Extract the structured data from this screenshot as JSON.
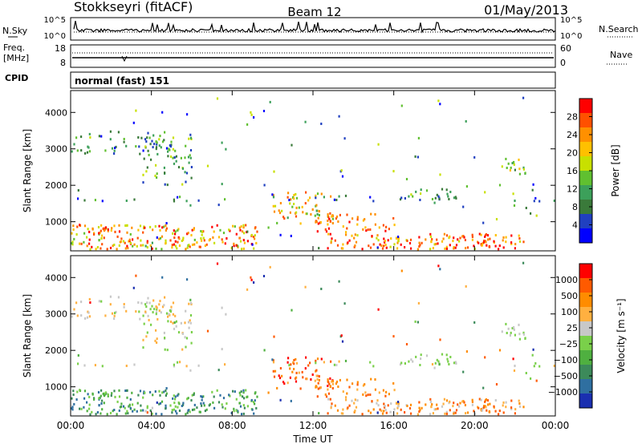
{
  "header": {
    "station": "Stokkseyri (fitACF)",
    "beam": "Beam 12",
    "date": "01/May/2013"
  },
  "left_labels": {
    "nsky": "N.Sky",
    "freq": "Freq.",
    "mhz": "[MHz]",
    "cpid": "CPID"
  },
  "right_labels": {
    "nsearch": "N.Search",
    "nave": "Nave"
  },
  "mode_text": "normal (fast) 151",
  "chart_data": [
    {
      "type": "line",
      "panel": "noise",
      "left_ticks": [
        "10^5",
        "10^0"
      ],
      "right_ticks": [
        "10^5",
        "10^0"
      ]
    },
    {
      "type": "line",
      "panel": "frequency",
      "left_ticks": [
        "18",
        "8"
      ],
      "right_ticks": [
        "60",
        "0"
      ]
    },
    {
      "type": "heatmap",
      "panel": "power",
      "ylabel": "Slant Range [km]",
      "yticks": [
        "4000",
        "3000",
        "2000",
        "1000"
      ],
      "ylim": [
        200,
        4600
      ],
      "xlim_hours": [
        0,
        24
      ],
      "colorbar": {
        "label": "Power [dB]",
        "ticks": [
          "28",
          "24",
          "20",
          "16",
          "12",
          "8",
          "4"
        ],
        "range": [
          0,
          32
        ],
        "colors": [
          "#0000ff",
          "#2040c0",
          "#3a7a3a",
          "#3ca05a",
          "#60c030",
          "#c8e000",
          "#ffc000",
          "#ff9000",
          "#ff5000",
          "#ff0000"
        ]
      }
    },
    {
      "type": "heatmap",
      "panel": "velocity",
      "ylabel": "Slant Range [km]",
      "yticks": [
        "4000",
        "3000",
        "2000",
        "1000"
      ],
      "ylim": [
        200,
        4600
      ],
      "xlim_hours": [
        0,
        24
      ],
      "colorbar": {
        "label": "Velocity [m s⁻¹]",
        "ticks": [
          "1000",
          "500",
          "100",
          "25",
          "−25",
          "−100",
          "−500",
          "−1000"
        ],
        "colors": [
          "#1a2fb0",
          "#2f6fa0",
          "#3c8a5a",
          "#4fb040",
          "#7ad04a",
          "#c8c8c8",
          "#ffb040",
          "#ff8c00",
          "#ff5a00",
          "#ff0000"
        ]
      },
      "xlabel": "Time UT",
      "xticks": [
        "00:00",
        "04:00",
        "08:00",
        "12:00",
        "16:00",
        "20:00",
        "00:00"
      ]
    }
  ]
}
